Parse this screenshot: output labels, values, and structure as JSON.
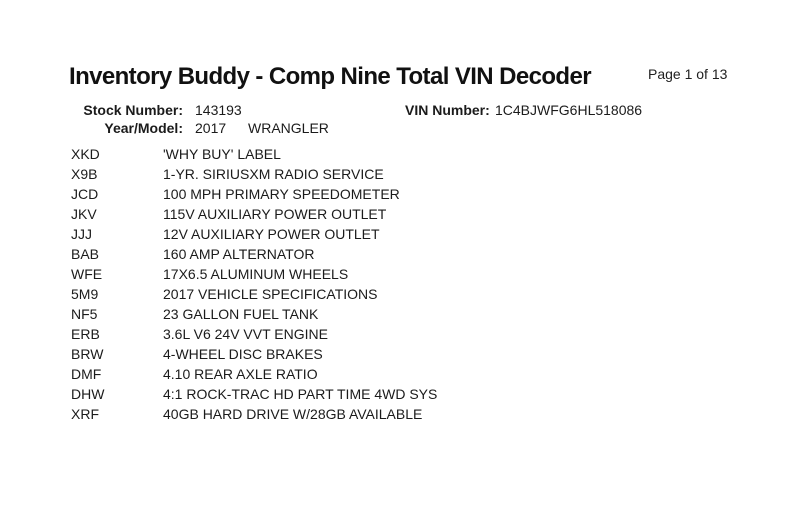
{
  "page": {
    "title": "Inventory Buddy - Comp Nine Total VIN Decoder",
    "page_indicator": "Page 1 of 13"
  },
  "header": {
    "stock_number_label": "Stock Number:",
    "stock_number_value": "143193",
    "year_model_label": "Year/Model:",
    "year_value": "2017",
    "model_value": "WRANGLER",
    "vin_label": "VIN Number:",
    "vin_value": "1C4BJWFG6HL518086"
  },
  "options": {
    "items": [
      {
        "code": "XKD",
        "description": "'WHY BUY' LABEL"
      },
      {
        "code": "X9B",
        "description": "1-YR. SIRIUSXM RADIO SERVICE"
      },
      {
        "code": "JCD",
        "description": "100 MPH PRIMARY SPEEDOMETER"
      },
      {
        "code": "JKV",
        "description": "115V AUXILIARY POWER OUTLET"
      },
      {
        "code": "JJJ",
        "description": "12V AUXILIARY POWER OUTLET"
      },
      {
        "code": "BAB",
        "description": "160 AMP ALTERNATOR"
      },
      {
        "code": "WFE",
        "description": "17X6.5 ALUMINUM WHEELS"
      },
      {
        "code": "5M9",
        "description": "2017 VEHICLE SPECIFICATIONS"
      },
      {
        "code": "NF5",
        "description": "23 GALLON FUEL TANK"
      },
      {
        "code": "ERB",
        "description": "3.6L V6 24V VVT ENGINE"
      },
      {
        "code": "BRW",
        "description": "4-WHEEL DISC BRAKES"
      },
      {
        "code": "DMF",
        "description": "4.10 REAR AXLE RATIO"
      },
      {
        "code": "DHW",
        "description": "4:1 ROCK-TRAC HD PART TIME 4WD SYS"
      },
      {
        "code": "XRF",
        "description": "40GB HARD DRIVE W/28GB AVAILABLE"
      }
    ]
  },
  "colors": {
    "background": "#ffffff",
    "text": "#1b1b1b",
    "title_text": "#111111"
  }
}
